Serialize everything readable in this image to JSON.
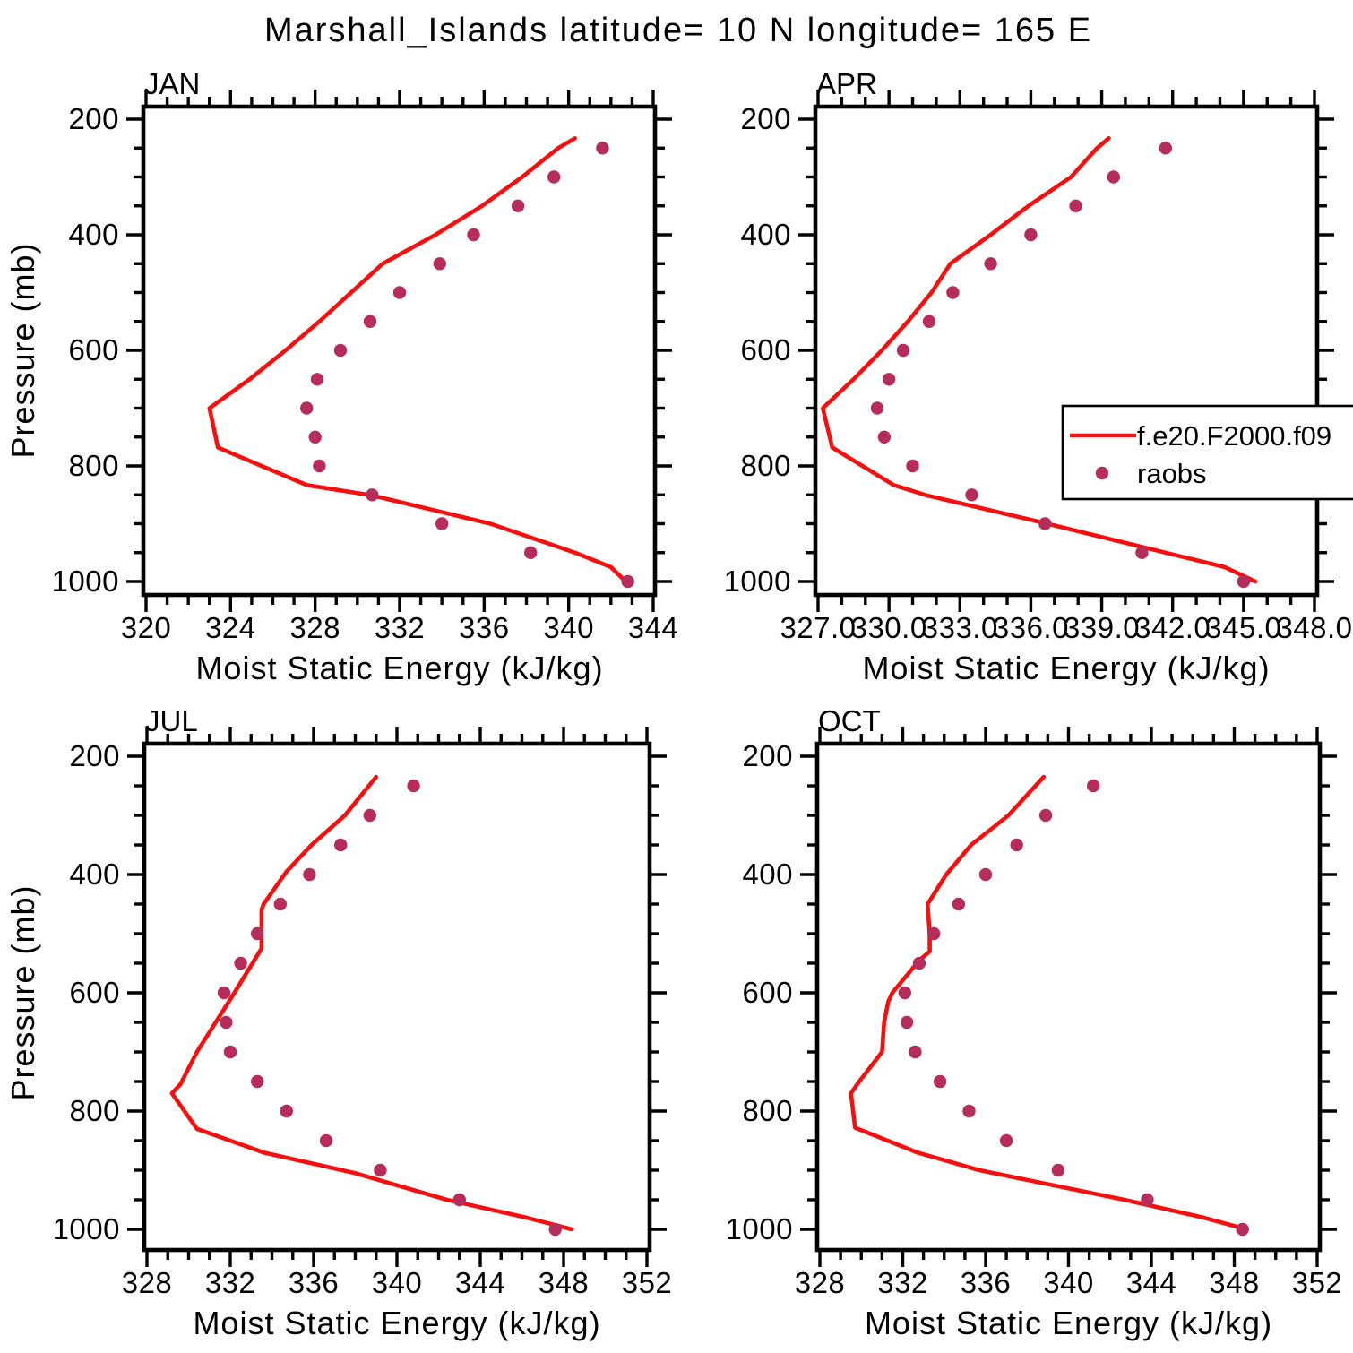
{
  "title": "Marshall_Islands  latitude= 10 N longitude= 165 E",
  "xlabel": "Moist Static Energy (kJ/kg)",
  "ylabel": "Pressure (mb)",
  "legend": {
    "entries": [
      {
        "symbol": "line",
        "label": "f.e20.F2000.f09"
      },
      {
        "symbol": "dot",
        "label": "raobs"
      }
    ]
  },
  "colors": {
    "model_line": "#f50f0f",
    "raobs_dot": "#b62d5b",
    "frame": "#000000",
    "background": "#ffffff"
  },
  "pressure_axis": {
    "min": 200,
    "max": 1000,
    "major_ticks": [
      200,
      400,
      600,
      800,
      1000
    ],
    "tick_labels": [
      "200",
      "400",
      "600",
      "800",
      "1000"
    ],
    "minor_step": 50
  },
  "chart_data": {
    "type": "line",
    "orientation": "profile (pressure decreases upward)",
    "panels": [
      {
        "month": "JAN",
        "x_axis": {
          "min": 320,
          "max": 344,
          "major_ticks": [
            320,
            324,
            328,
            332,
            336,
            340,
            344
          ],
          "tick_labels": [
            "320",
            "324",
            "328",
            "332",
            "336",
            "340",
            "344"
          ],
          "minor_step": 1
        },
        "series": [
          {
            "name": "f.e20.F2000.f09",
            "type": "line",
            "points": [
              [
                340.3,
                233
              ],
              [
                339.5,
                250
              ],
              [
                337.8,
                300
              ],
              [
                335.9,
                350
              ],
              [
                333.7,
                400
              ],
              [
                331.2,
                450
              ],
              [
                329.7,
                500
              ],
              [
                328.2,
                550
              ],
              [
                326.6,
                600
              ],
              [
                324.9,
                650
              ],
              [
                323.0,
                700
              ],
              [
                323.4,
                768
              ],
              [
                327.6,
                833
              ],
              [
                330.7,
                851
              ],
              [
                336.3,
                900
              ],
              [
                340.3,
                950
              ],
              [
                342.0,
                975
              ],
              [
                342.7,
                1000
              ]
            ]
          },
          {
            "name": "raobs",
            "type": "scatter",
            "points": [
              [
                341.6,
                250
              ],
              [
                339.3,
                300
              ],
              [
                337.6,
                350
              ],
              [
                335.5,
                400
              ],
              [
                333.9,
                450
              ],
              [
                332.0,
                500
              ],
              [
                330.6,
                550
              ],
              [
                329.2,
                600
              ],
              [
                328.1,
                650
              ],
              [
                327.6,
                700
              ],
              [
                328.0,
                750
              ],
              [
                328.2,
                800
              ],
              [
                330.7,
                850
              ],
              [
                334.0,
                900
              ],
              [
                338.2,
                950
              ],
              [
                342.8,
                1000
              ]
            ]
          }
        ]
      },
      {
        "month": "APR",
        "x_axis": {
          "min": 327,
          "max": 348,
          "major_ticks": [
            327,
            330,
            333,
            336,
            339,
            342,
            345,
            348
          ],
          "tick_labels": [
            "327.0",
            "330.0",
            "333.0",
            "336.0",
            "339.0",
            "342.0",
            "345.0",
            "348.0"
          ],
          "minor_step": 1
        },
        "series": [
          {
            "name": "f.e20.F2000.f09",
            "type": "line",
            "points": [
              [
                339.3,
                233
              ],
              [
                338.8,
                250
              ],
              [
                337.7,
                300
              ],
              [
                335.9,
                350
              ],
              [
                334.3,
                400
              ],
              [
                332.6,
                450
              ],
              [
                331.8,
                500
              ],
              [
                330.8,
                550
              ],
              [
                329.7,
                600
              ],
              [
                328.5,
                650
              ],
              [
                327.2,
                700
              ],
              [
                327.6,
                768
              ],
              [
                330.2,
                833
              ],
              [
                331.6,
                851
              ],
              [
                336.7,
                900
              ],
              [
                341.7,
                950
              ],
              [
                344.2,
                975
              ],
              [
                345.5,
                1000
              ]
            ]
          },
          {
            "name": "raobs",
            "type": "scatter",
            "points": [
              [
                341.7,
                250
              ],
              [
                339.5,
                300
              ],
              [
                337.9,
                350
              ],
              [
                336.0,
                400
              ],
              [
                334.3,
                450
              ],
              [
                332.7,
                500
              ],
              [
                331.7,
                550
              ],
              [
                330.6,
                600
              ],
              [
                330.0,
                650
              ],
              [
                329.5,
                700
              ],
              [
                329.8,
                750
              ],
              [
                331.0,
                800
              ],
              [
                333.5,
                850
              ],
              [
                336.6,
                900
              ],
              [
                340.7,
                950
              ],
              [
                345.0,
                1000
              ]
            ]
          }
        ]
      },
      {
        "month": "JUL",
        "x_axis": {
          "min": 328,
          "max": 352,
          "major_ticks": [
            328,
            332,
            336,
            340,
            344,
            348,
            352
          ],
          "tick_labels": [
            "328",
            "332",
            "336",
            "340",
            "344",
            "348",
            "352"
          ],
          "minor_step": 1
        },
        "series": [
          {
            "name": "f.e20.F2000.f09",
            "type": "line",
            "points": [
              [
                339.0,
                235
              ],
              [
                337.5,
                300
              ],
              [
                335.9,
                350
              ],
              [
                334.7,
                395
              ],
              [
                333.6,
                450
              ],
              [
                333.5,
                460
              ],
              [
                333.5,
                525
              ],
              [
                332.2,
                600
              ],
              [
                331.3,
                650
              ],
              [
                330.4,
                700
              ],
              [
                329.6,
                755
              ],
              [
                329.2,
                770
              ],
              [
                330.4,
                830
              ],
              [
                333.6,
                870
              ],
              [
                338.0,
                905
              ],
              [
                342.4,
                950
              ],
              [
                346.2,
                980
              ],
              [
                348.4,
                1000
              ]
            ]
          },
          {
            "name": "raobs",
            "type": "scatter",
            "points": [
              [
                340.8,
                250
              ],
              [
                338.7,
                300
              ],
              [
                337.3,
                350
              ],
              [
                335.8,
                400
              ],
              [
                334.4,
                450
              ],
              [
                333.3,
                500
              ],
              [
                332.5,
                550
              ],
              [
                331.7,
                600
              ],
              [
                331.8,
                650
              ],
              [
                332.0,
                700
              ],
              [
                333.3,
                750
              ],
              [
                334.7,
                800
              ],
              [
                336.6,
                850
              ],
              [
                339.2,
                900
              ],
              [
                343.0,
                950
              ],
              [
                347.6,
                1000
              ]
            ]
          }
        ]
      },
      {
        "month": "OCT",
        "x_axis": {
          "min": 328,
          "max": 352,
          "major_ticks": [
            328,
            332,
            336,
            340,
            344,
            348,
            352
          ],
          "tick_labels": [
            "328",
            "332",
            "336",
            "340",
            "344",
            "348",
            "352"
          ],
          "minor_step": 1
        },
        "series": [
          {
            "name": "f.e20.F2000.f09",
            "type": "line",
            "points": [
              [
                338.8,
                235
              ],
              [
                337.1,
                300
              ],
              [
                335.3,
                350
              ],
              [
                334.1,
                400
              ],
              [
                333.2,
                450
              ],
              [
                333.3,
                500
              ],
              [
                333.3,
                530
              ],
              [
                332.8,
                545
              ],
              [
                331.5,
                600
              ],
              [
                331.3,
                615
              ],
              [
                331.1,
                650
              ],
              [
                331.0,
                700
              ],
              [
                329.9,
                750
              ],
              [
                329.5,
                770
              ],
              [
                329.7,
                828
              ],
              [
                332.7,
                870
              ],
              [
                335.7,
                900
              ],
              [
                342.7,
                950
              ],
              [
                346.5,
                980
              ],
              [
                348.6,
                1000
              ]
            ]
          },
          {
            "name": "raobs",
            "type": "scatter",
            "points": [
              [
                341.2,
                250
              ],
              [
                338.9,
                300
              ],
              [
                337.5,
                350
              ],
              [
                336.0,
                400
              ],
              [
                334.7,
                450
              ],
              [
                333.5,
                500
              ],
              [
                332.8,
                550
              ],
              [
                332.1,
                600
              ],
              [
                332.2,
                650
              ],
              [
                332.6,
                700
              ],
              [
                333.8,
                750
              ],
              [
                335.2,
                800
              ],
              [
                337.0,
                850
              ],
              [
                339.5,
                900
              ],
              [
                343.8,
                950
              ],
              [
                348.4,
                1000
              ]
            ]
          }
        ]
      }
    ]
  }
}
